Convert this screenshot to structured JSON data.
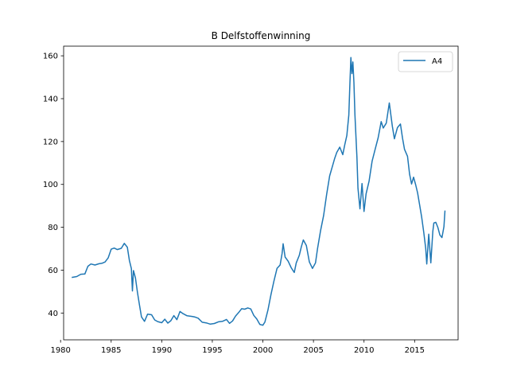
{
  "chart_data": {
    "type": "line",
    "title": "B Delfstoffenwinning",
    "xlabel": "",
    "ylabel": "",
    "xlim": [
      1980.3,
      2019.3
    ],
    "ylim": [
      27.5,
      164.5
    ],
    "grid": false,
    "legend_position": "top-right",
    "x_ticks": [
      1980,
      1985,
      1990,
      1995,
      2000,
      2005,
      2010,
      2015
    ],
    "y_ticks": [
      40,
      60,
      80,
      100,
      120,
      140,
      160
    ],
    "series": [
      {
        "name": "A4",
        "color": "#1f77b4",
        "points": [
          [
            1981.1,
            56.6
          ],
          [
            1981.6,
            57.0
          ],
          [
            1982.0,
            58.1
          ],
          [
            1982.4,
            58.2
          ],
          [
            1982.7,
            61.8
          ],
          [
            1983.0,
            62.9
          ],
          [
            1983.4,
            62.4
          ],
          [
            1983.8,
            63.0
          ],
          [
            1984.1,
            63.2
          ],
          [
            1984.4,
            63.8
          ],
          [
            1984.7,
            65.7
          ],
          [
            1985.0,
            69.8
          ],
          [
            1985.3,
            70.3
          ],
          [
            1985.6,
            69.6
          ],
          [
            1986.0,
            70.2
          ],
          [
            1986.3,
            72.5
          ],
          [
            1986.6,
            70.7
          ],
          [
            1986.8,
            64.5
          ],
          [
            1987.0,
            60.7
          ],
          [
            1987.1,
            50.3
          ],
          [
            1987.2,
            59.8
          ],
          [
            1987.4,
            56.4
          ],
          [
            1987.6,
            49.7
          ],
          [
            1987.8,
            43.7
          ],
          [
            1988.0,
            38.2
          ],
          [
            1988.3,
            36.1
          ],
          [
            1988.6,
            39.5
          ],
          [
            1989.0,
            39.2
          ],
          [
            1989.3,
            36.8
          ],
          [
            1989.6,
            36.0
          ],
          [
            1990.0,
            35.5
          ],
          [
            1990.3,
            37.1
          ],
          [
            1990.6,
            35.3
          ],
          [
            1990.9,
            36.4
          ],
          [
            1991.2,
            38.8
          ],
          [
            1991.5,
            36.9
          ],
          [
            1991.8,
            40.7
          ],
          [
            1992.1,
            39.7
          ],
          [
            1992.5,
            38.7
          ],
          [
            1993.0,
            38.4
          ],
          [
            1993.3,
            38.1
          ],
          [
            1993.6,
            37.6
          ],
          [
            1994.0,
            35.7
          ],
          [
            1994.4,
            35.4
          ],
          [
            1994.8,
            34.8
          ],
          [
            1995.2,
            35.1
          ],
          [
            1995.6,
            35.9
          ],
          [
            1996.0,
            36.1
          ],
          [
            1996.4,
            37.0
          ],
          [
            1996.7,
            35.2
          ],
          [
            1997.0,
            36.3
          ],
          [
            1997.3,
            38.6
          ],
          [
            1997.6,
            40.2
          ],
          [
            1997.9,
            42.0
          ],
          [
            1998.2,
            41.8
          ],
          [
            1998.5,
            42.4
          ],
          [
            1998.8,
            41.9
          ],
          [
            1999.1,
            38.9
          ],
          [
            1999.4,
            37.2
          ],
          [
            1999.7,
            34.7
          ],
          [
            2000.0,
            34.3
          ],
          [
            2000.2,
            35.8
          ],
          [
            2000.5,
            41.4
          ],
          [
            2000.8,
            48.6
          ],
          [
            2001.1,
            55.0
          ],
          [
            2001.4,
            60.8
          ],
          [
            2001.7,
            62.4
          ],
          [
            2001.9,
            67.8
          ],
          [
            2002.0,
            72.3
          ],
          [
            2002.2,
            66.1
          ],
          [
            2002.5,
            64.2
          ],
          [
            2002.8,
            61.1
          ],
          [
            2003.1,
            58.9
          ],
          [
            2003.3,
            63.4
          ],
          [
            2003.6,
            66.9
          ],
          [
            2003.8,
            70.9
          ],
          [
            2004.0,
            74.1
          ],
          [
            2004.3,
            71.5
          ],
          [
            2004.6,
            63.8
          ],
          [
            2004.9,
            60.8
          ],
          [
            2005.2,
            63.4
          ],
          [
            2005.4,
            69.9
          ],
          [
            2005.7,
            78.3
          ],
          [
            2006.0,
            85.5
          ],
          [
            2006.3,
            95.3
          ],
          [
            2006.6,
            104.0
          ],
          [
            2006.9,
            108.9
          ],
          [
            2007.1,
            112.1
          ],
          [
            2007.3,
            114.9
          ],
          [
            2007.6,
            117.4
          ],
          [
            2007.9,
            113.9
          ],
          [
            2008.1,
            118.7
          ],
          [
            2008.3,
            122.8
          ],
          [
            2008.5,
            132.4
          ],
          [
            2008.6,
            146.5
          ],
          [
            2008.7,
            159.2
          ],
          [
            2008.8,
            151.7
          ],
          [
            2008.9,
            157.1
          ],
          [
            2009.0,
            147.6
          ],
          [
            2009.1,
            132.3
          ],
          [
            2009.3,
            112.6
          ],
          [
            2009.4,
            98.2
          ],
          [
            2009.6,
            88.6
          ],
          [
            2009.8,
            100.4
          ],
          [
            2010.0,
            87.4
          ],
          [
            2010.2,
            95.6
          ],
          [
            2010.5,
            101.6
          ],
          [
            2010.8,
            110.9
          ],
          [
            2011.1,
            116.4
          ],
          [
            2011.4,
            121.8
          ],
          [
            2011.7,
            129.3
          ],
          [
            2011.9,
            126.3
          ],
          [
            2012.2,
            128.6
          ],
          [
            2012.5,
            138.0
          ],
          [
            2012.8,
            127.2
          ],
          [
            2013.0,
            121.3
          ],
          [
            2013.3,
            126.5
          ],
          [
            2013.6,
            128.2
          ],
          [
            2013.8,
            121.6
          ],
          [
            2014.0,
            116.4
          ],
          [
            2014.3,
            113.1
          ],
          [
            2014.5,
            104.8
          ],
          [
            2014.7,
            100.2
          ],
          [
            2014.9,
            103.4
          ],
          [
            2015.1,
            99.9
          ],
          [
            2015.3,
            96.0
          ],
          [
            2015.5,
            90.3
          ],
          [
            2015.7,
            84.7
          ],
          [
            2015.9,
            77.7
          ],
          [
            2016.1,
            70.1
          ],
          [
            2016.2,
            62.9
          ],
          [
            2016.4,
            76.8
          ],
          [
            2016.6,
            63.4
          ],
          [
            2016.8,
            78.0
          ],
          [
            2016.9,
            82.0
          ],
          [
            2017.1,
            82.3
          ],
          [
            2017.3,
            79.9
          ],
          [
            2017.5,
            76.4
          ],
          [
            2017.7,
            75.2
          ],
          [
            2017.9,
            80.3
          ],
          [
            2018.0,
            87.8
          ]
        ]
      }
    ]
  }
}
